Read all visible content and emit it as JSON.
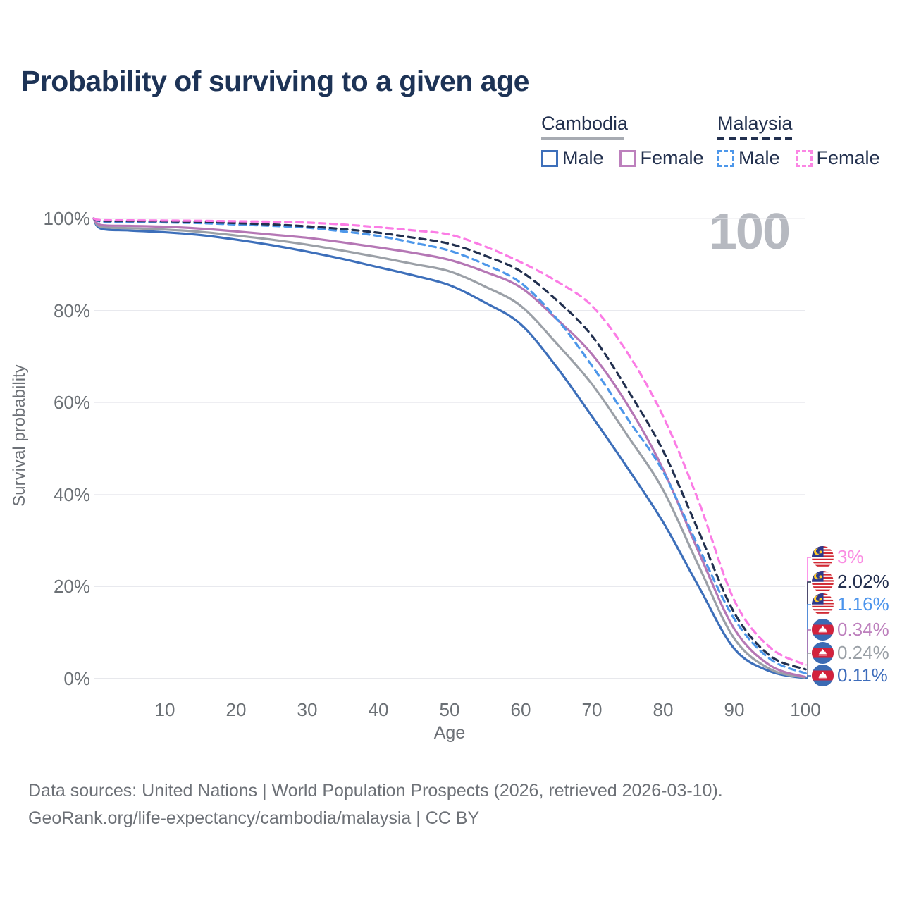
{
  "title": "Probability of surviving to a given age",
  "watermark": "100",
  "legend": {
    "groups": [
      {
        "name": "Cambodia",
        "line_style": "solid",
        "header_color": "#a7abb2",
        "items": [
          {
            "label": "Male",
            "color": "#3d6fba"
          },
          {
            "label": "Female",
            "color": "#bd80bd"
          }
        ]
      },
      {
        "name": "Malaysia",
        "line_style": "dashed",
        "header_color": "#22304f",
        "items": [
          {
            "label": "Male",
            "color": "#4d97ea"
          },
          {
            "label": "Female",
            "color": "#fb85e4"
          }
        ]
      }
    ]
  },
  "chart_data": {
    "type": "line",
    "title": "Probability of surviving to a given age",
    "xlabel": "Age",
    "ylabel": "Survival probability",
    "xlim": [
      0,
      100
    ],
    "ylim": [
      0,
      100
    ],
    "grid": "horizontal",
    "x_ticks": [
      10,
      20,
      30,
      40,
      50,
      60,
      70,
      80,
      90,
      100
    ],
    "y_ticks": [
      "0%",
      "20%",
      "40%",
      "60%",
      "80%",
      "100%"
    ],
    "x": [
      0,
      1,
      5,
      10,
      15,
      20,
      25,
      30,
      35,
      40,
      45,
      50,
      55,
      60,
      65,
      70,
      75,
      80,
      85,
      90,
      95,
      100
    ],
    "series": [
      {
        "name": "Cambodia Male",
        "country": "Cambodia",
        "sex": "Male",
        "style": "solid",
        "color": "#3d6fba",
        "values": [
          100,
          97.8,
          97.4,
          97.0,
          96.4,
          95.4,
          94.2,
          92.8,
          91.2,
          89.4,
          87.6,
          85.5,
          81.7,
          77.0,
          67.8,
          57.0,
          45.8,
          34.0,
          20.0,
          6.5,
          1.6,
          0.11
        ],
        "end_value": "0.11%"
      },
      {
        "name": "Cambodia Both sexes",
        "country": "Cambodia",
        "sex": "Both",
        "style": "solid",
        "color": "#9ba0a7",
        "values": [
          100,
          98.2,
          97.9,
          97.6,
          97.1,
          96.3,
          95.4,
          94.3,
          93.0,
          91.6,
          90.1,
          88.5,
          85.2,
          81.0,
          72.9,
          64.0,
          52.8,
          41.0,
          24.5,
          8.7,
          2.1,
          0.24
        ],
        "end_value": "0.24%"
      },
      {
        "name": "Cambodia Female",
        "country": "Cambodia",
        "sex": "Female",
        "style": "solid",
        "color": "#b577b5",
        "values": [
          100,
          98.6,
          98.4,
          98.2,
          97.8,
          97.2,
          96.5,
          95.8,
          94.8,
          93.7,
          92.5,
          91.0,
          88.4,
          85.0,
          78.2,
          70.5,
          59.5,
          45.5,
          27.5,
          10.8,
          2.9,
          0.34
        ],
        "end_value": "0.34%"
      },
      {
        "name": "Malaysia Male",
        "country": "Malaysia",
        "sex": "Male",
        "style": "dashed",
        "color": "#4d97ea",
        "values": [
          100,
          99.35,
          99.25,
          99.15,
          99.0,
          98.7,
          98.4,
          98.0,
          97.2,
          96.2,
          94.7,
          93.0,
          90.0,
          86.0,
          78.3,
          68.0,
          56.5,
          45.0,
          28.5,
          13.0,
          4.3,
          1.16
        ],
        "end_value": "1.16%"
      },
      {
        "name": "Malaysia Both sexes",
        "country": "Malaysia",
        "sex": "Both",
        "style": "dashed",
        "color": "#22304f",
        "values": [
          100,
          99.5,
          99.45,
          99.4,
          99.25,
          99.0,
          98.7,
          98.3,
          97.7,
          96.9,
          95.8,
          94.5,
          91.9,
          88.5,
          82.3,
          74.5,
          62.8,
          49.5,
          32.0,
          14.3,
          5.0,
          2.02
        ],
        "end_value": "2.02%"
      },
      {
        "name": "Malaysia Female",
        "country": "Malaysia",
        "sex": "Female",
        "style": "dashed",
        "color": "#fb7ce5",
        "values": [
          100,
          99.65,
          99.6,
          99.55,
          99.5,
          99.4,
          99.3,
          99.1,
          98.7,
          98.1,
          97.4,
          96.5,
          93.9,
          90.5,
          86.4,
          81.0,
          70.8,
          57.0,
          38.5,
          17.0,
          6.8,
          3.0
        ],
        "end_value": "3%"
      }
    ],
    "end_labels": [
      {
        "text": "3%",
        "color": "#fa8ce2",
        "flag": "malaysia",
        "series_index": 5
      },
      {
        "text": "2.02%",
        "color": "#232f4e",
        "flag": "malaysia",
        "series_index": 4
      },
      {
        "text": "1.16%",
        "color": "#4b94ec",
        "flag": "malaysia",
        "series_index": 3
      },
      {
        "text": "0.34%",
        "color": "#bd80bd",
        "flag": "cambodia",
        "series_index": 2
      },
      {
        "text": "0.24%",
        "color": "#9aa0a6",
        "flag": "cambodia",
        "series_index": 1
      },
      {
        "text": "0.11%",
        "color": "#3d6cbb",
        "flag": "cambodia",
        "series_index": 0
      }
    ],
    "legend_position": "top-right",
    "frame_label": "100"
  },
  "footer": {
    "line1": "Data sources: United Nations | World Population Prospects (2026, retrieved 2026-03-10).",
    "line2": "GeoRank.org/life-expectancy/cambodia/malaysia | CC BY"
  }
}
